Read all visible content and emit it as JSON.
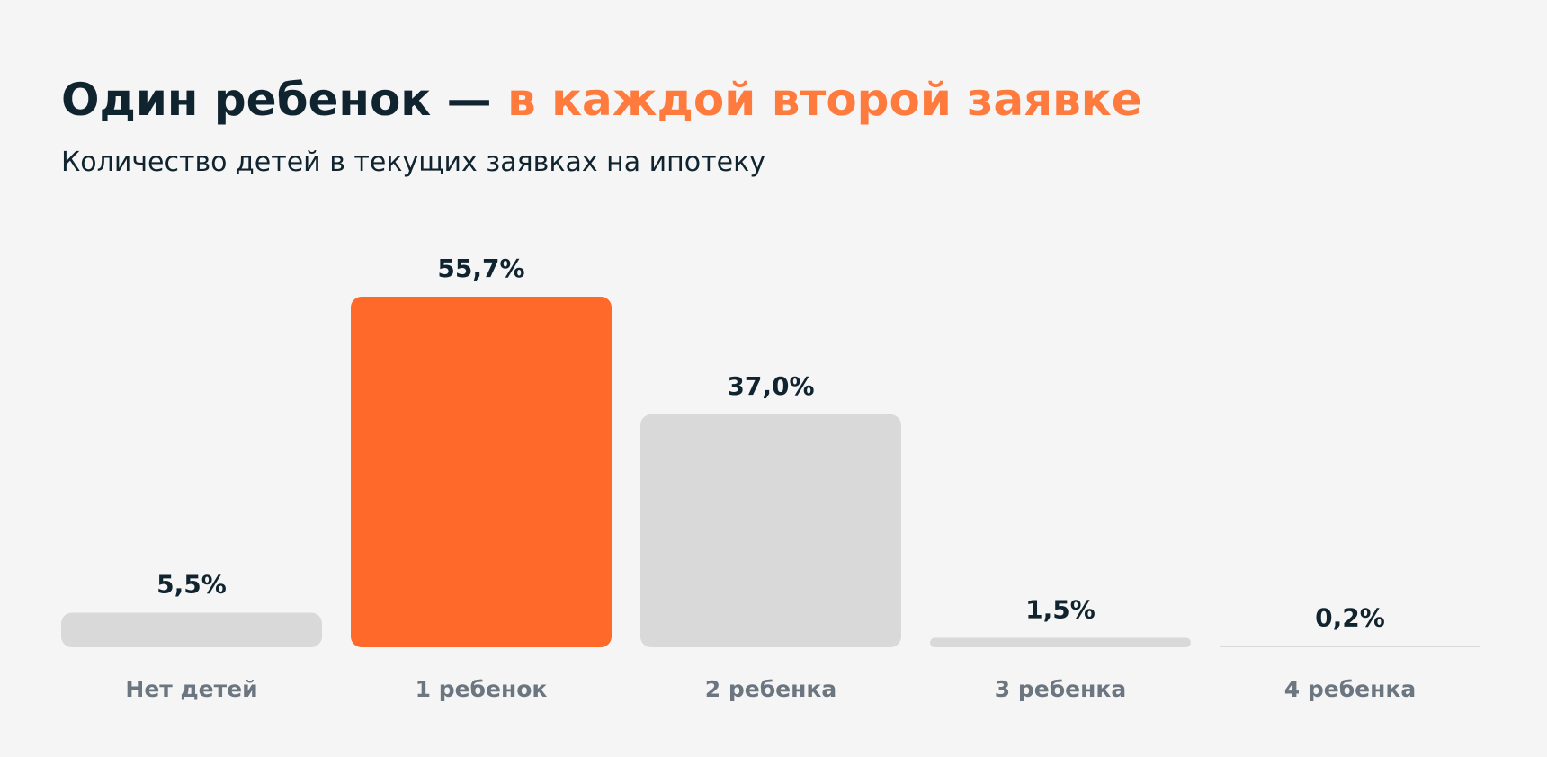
{
  "chart_data": {
    "type": "bar",
    "title": "Один ребенок —",
    "title_highlight": "в каждой второй заявке",
    "title_colors": [
      "#10242f",
      "#ff7a3d"
    ],
    "subtitle": "Количество детей в текущих заявках на ипотеку",
    "categories": [
      "Нет детей",
      "1 ребенок",
      "2 ребенка",
      "3 ребенка",
      "4 ребенка"
    ],
    "values": [
      5.5,
      55.7,
      37.0,
      1.5,
      0.2
    ],
    "value_labels": [
      "5,5%",
      "55,7%",
      "37,0%",
      "1,5%",
      "0,2%"
    ],
    "colors": [
      "#d9d9d9",
      "#ff6a2a",
      "#d9d9d9",
      "#d9d9d9",
      "#d9d9d9"
    ]
  }
}
